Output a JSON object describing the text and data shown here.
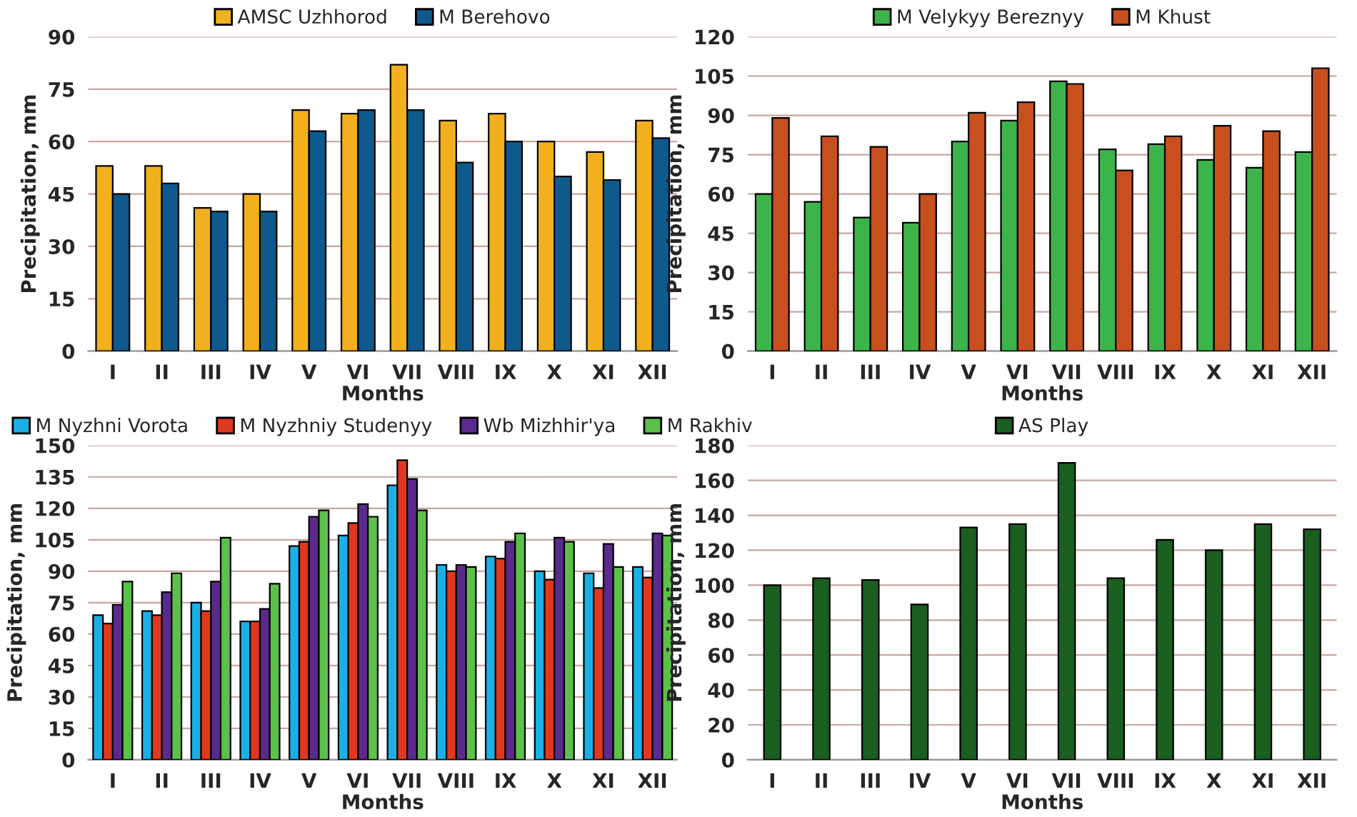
{
  "chart_data": [
    {
      "type": "bar",
      "categories": [
        "I",
        "II",
        "III",
        "IV",
        "V",
        "VI",
        "VII",
        "VIII",
        "IX",
        "X",
        "XI",
        "XII"
      ],
      "xlabel": "Months",
      "ylabel": "Precipitation, mm",
      "ylim": [
        0,
        90
      ],
      "yticks": [
        0,
        15,
        30,
        45,
        60,
        75,
        90
      ],
      "grid": "y",
      "legend": "top",
      "series": [
        {
          "name": "AMSC Uzhhorod",
          "color": "#f2b01e",
          "values": [
            53,
            53,
            41,
            45,
            69,
            68,
            82,
            66,
            68,
            60,
            57,
            66
          ]
        },
        {
          "name": "M Berehovo",
          "color": "#0f5a8c",
          "values": [
            45,
            48,
            40,
            40,
            63,
            69,
            69,
            54,
            60,
            50,
            49,
            61
          ]
        }
      ]
    },
    {
      "type": "bar",
      "categories": [
        "I",
        "II",
        "III",
        "IV",
        "V",
        "VI",
        "VII",
        "VIII",
        "IX",
        "X",
        "XI",
        "XII"
      ],
      "xlabel": "Months",
      "ylabel": "Precipitation, mm",
      "ylim": [
        0,
        120
      ],
      "yticks": [
        0,
        15,
        30,
        45,
        60,
        75,
        90,
        105,
        120
      ],
      "grid": "y",
      "legend": "top",
      "series": [
        {
          "name": "M Velykyy Bereznyy",
          "color": "#3cb44a",
          "values": [
            60,
            57,
            51,
            49,
            80,
            88,
            103,
            77,
            79,
            73,
            70,
            76
          ]
        },
        {
          "name": "M Khust",
          "color": "#c8501e",
          "values": [
            89,
            82,
            78,
            60,
            91,
            95,
            102,
            69,
            82,
            86,
            84,
            108
          ]
        }
      ]
    },
    {
      "type": "bar",
      "categories": [
        "I",
        "II",
        "III",
        "IV",
        "V",
        "VI",
        "VII",
        "VIII",
        "IX",
        "X",
        "XI",
        "XII"
      ],
      "xlabel": "Months",
      "ylabel": "Precipitation, mm",
      "ylim": [
        0,
        150
      ],
      "yticks": [
        0,
        15,
        30,
        45,
        60,
        75,
        90,
        105,
        120,
        135,
        150
      ],
      "grid": "y",
      "legend": "top",
      "series": [
        {
          "name": "M Nyzhni Vorota",
          "color": "#1ab0e6",
          "values": [
            69,
            71,
            75,
            66,
            102,
            107,
            131,
            93,
            97,
            90,
            89,
            92
          ]
        },
        {
          "name": "M Nyzhniy Studenyy",
          "color": "#e0381e",
          "values": [
            65,
            69,
            71,
            66,
            104,
            113,
            143,
            90,
            96,
            86,
            82,
            87
          ]
        },
        {
          "name": "Wb Mizhhir'ya",
          "color": "#5a2a8c",
          "values": [
            74,
            80,
            85,
            72,
            116,
            122,
            134,
            93,
            104,
            106,
            103,
            108
          ]
        },
        {
          "name": "M Rakhiv",
          "color": "#5cc04a",
          "values": [
            85,
            89,
            106,
            84,
            119,
            116,
            119,
            92,
            108,
            104,
            92,
            107
          ]
        }
      ]
    },
    {
      "type": "bar",
      "categories": [
        "I",
        "II",
        "III",
        "IV",
        "V",
        "VI",
        "VII",
        "VIII",
        "IX",
        "X",
        "XI",
        "XII"
      ],
      "xlabel": "Months",
      "ylabel": "Precipitation, mm",
      "ylim": [
        0,
        180
      ],
      "yticks": [
        0,
        20,
        40,
        60,
        80,
        100,
        120,
        140,
        160,
        180
      ],
      "grid": "y",
      "legend": "top",
      "series": [
        {
          "name": "AS Play",
          "color": "#1a5e20",
          "values": [
            100,
            104,
            103,
            89,
            133,
            135,
            170,
            104,
            126,
            120,
            135,
            132
          ]
        }
      ]
    }
  ]
}
